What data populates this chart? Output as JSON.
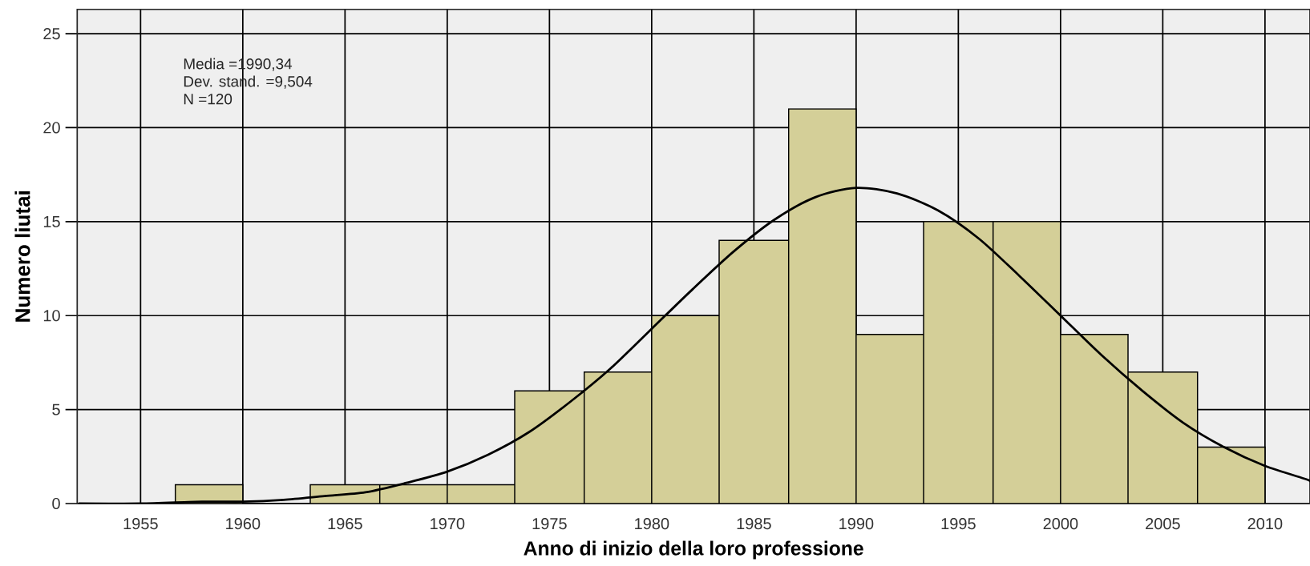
{
  "chart_data": {
    "type": "histogram",
    "xlabel": "Anno di inizio della loro professione",
    "ylabel": "Numero liutai",
    "annotations": [
      "Media =1990,34",
      "Dev. stand. =9,504",
      "N =120"
    ],
    "series": [
      {
        "color": "#d4cf98",
        "bins": [
          1956.7,
          1960,
          1963.3,
          1966.7,
          1970,
          1973.3,
          1976.7,
          1980,
          1983.3,
          1986.7,
          1990,
          1993.3,
          1996.7,
          2000,
          2003.3,
          2006.7,
          2010
        ],
        "values": [
          1,
          0,
          1,
          1,
          1,
          6,
          7,
          10,
          14,
          21,
          9,
          15,
          15,
          9,
          7,
          3
        ]
      },
      {
        "type": "line",
        "color": "#000000",
        "x": [
          1952,
          1955,
          1958,
          1960,
          1962,
          1964,
          1966,
          1968,
          1970,
          1972,
          1974,
          1976,
          1978,
          1980,
          1982,
          1984,
          1986,
          1988,
          1990,
          1992,
          1994,
          1996,
          1998,
          2000,
          2002,
          2004,
          2006,
          2008,
          2010,
          2012,
          2012.2
        ],
        "values": [
          0.0,
          0.0,
          0.1,
          0.1,
          0.2,
          0.4,
          0.6,
          1.1,
          1.7,
          2.6,
          3.8,
          5.4,
          7.2,
          9.3,
          11.4,
          13.4,
          15.1,
          16.3,
          16.8,
          16.5,
          15.6,
          14.1,
          12.1,
          10.0,
          7.9,
          6.0,
          4.3,
          3.0,
          2.0,
          1.3,
          1.2
        ]
      }
    ],
    "xlim": [
      1951.9,
      2012.2
    ],
    "ylim": [
      0,
      26.3
    ],
    "xticks": [
      1955,
      1960,
      1965,
      1970,
      1975,
      1980,
      1985,
      1990,
      1995,
      2000,
      2005,
      2010
    ],
    "yticks": [
      0,
      5,
      10,
      15,
      20,
      25
    ],
    "grid": true
  }
}
